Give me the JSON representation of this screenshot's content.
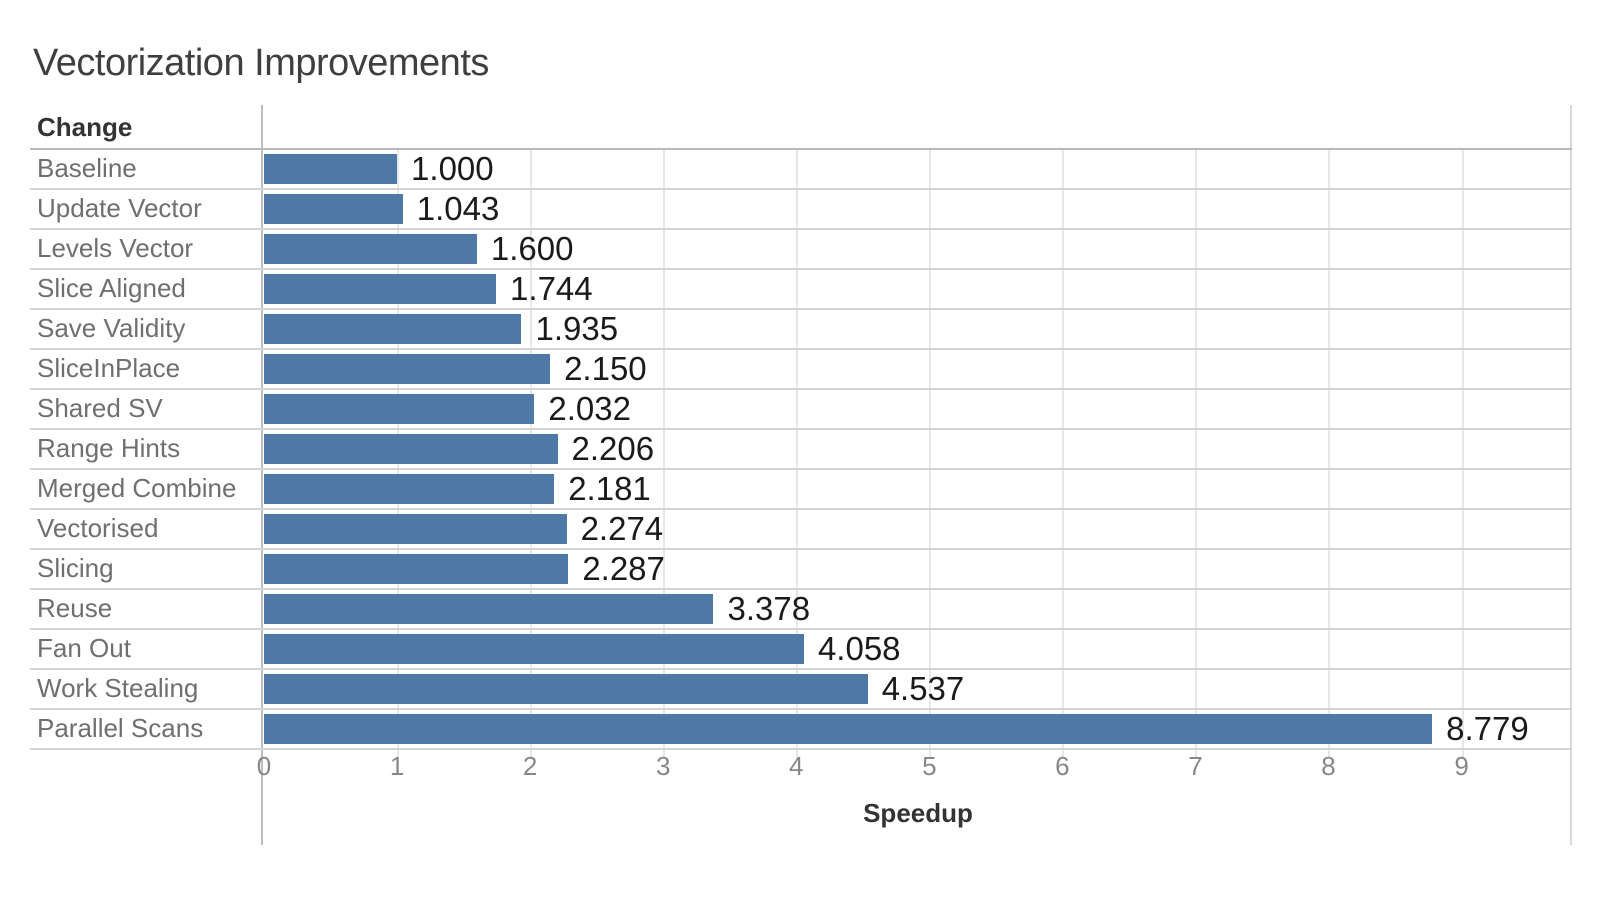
{
  "chart_data": {
    "type": "bar",
    "orientation": "horizontal",
    "title": "Vectorization Improvements",
    "row_header": "Change",
    "xlabel": "Speedup",
    "categories": [
      "Baseline",
      "Update Vector",
      "Levels Vector",
      "Slice Aligned",
      "Save Validity",
      "SliceInPlace",
      "Shared SV",
      "Range Hints",
      "Merged Combine",
      "Vectorised",
      "Slicing",
      "Reuse",
      "Fan Out",
      "Work Stealing",
      "Parallel Scans"
    ],
    "values": [
      1.0,
      1.043,
      1.6,
      1.744,
      1.935,
      2.15,
      2.032,
      2.206,
      2.181,
      2.274,
      2.287,
      3.378,
      4.058,
      4.537,
      8.779
    ],
    "value_labels": [
      "1.000",
      "1.043",
      "1.600",
      "1.744",
      "1.935",
      "2.150",
      "2.032",
      "2.206",
      "2.181",
      "2.274",
      "2.287",
      "3.378",
      "4.058",
      "4.537",
      "8.779"
    ],
    "ticks": [
      0,
      1,
      2,
      3,
      4,
      5,
      6,
      7,
      8,
      9
    ],
    "xlim": [
      0,
      9.83
    ],
    "grid": true,
    "legend": "none",
    "bar_color": "#4e79a7"
  },
  "colors": {
    "bar": "#4e79a7",
    "gridline": "#e7e7e7",
    "row_divider": "#d4d4d4",
    "axis_line": "#bdbdbd",
    "value_text": "#1a1a1a",
    "label_text": "#6f6f6f",
    "tick_text": "#878787",
    "title_text": "#3f3f3f"
  }
}
